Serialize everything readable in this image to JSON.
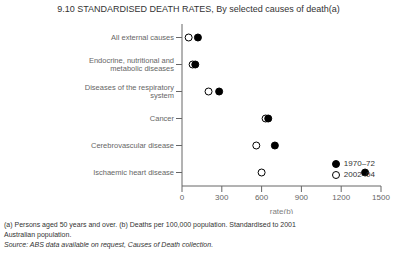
{
  "chart_data": {
    "type": "dot",
    "title": "9.10  STANDARDISED DEATH RATES, By selected causes of death(a)",
    "categories": [
      "All external causes",
      "Endocrine, nutritional and metabolic diseases",
      "Diseases of the respiratory system",
      "Cancer",
      "Cerebrovascular disease",
      "Ischaemic heart disease"
    ],
    "series": [
      {
        "name": "1970–72",
        "color": "#000000",
        "marker": "circle",
        "values": [
          120,
          100,
          280,
          650,
          700,
          1380
        ]
      },
      {
        "name": "2002–04",
        "color": "#000000",
        "marker": "open_circle",
        "values": [
          50,
          80,
          200,
          630,
          560,
          600
        ]
      }
    ],
    "xlim": [
      0,
      1500
    ],
    "xticks": [
      0,
      300,
      600,
      900,
      1200,
      1500
    ],
    "xlabel": "rate(b)",
    "legend": "lower right",
    "annotations": [
      "(a) Persons aged 50 years and over.  (b) Deaths per 100,000 population.  Standardised to 2001",
      "Australian population.",
      "Source: ABS data available on request, Causes of Death collection."
    ]
  }
}
